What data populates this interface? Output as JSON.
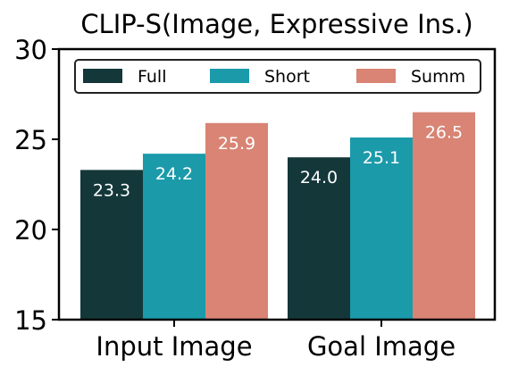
{
  "chart_data": {
    "type": "bar",
    "title": "CLIP-S(Image, Expressive Ins.)",
    "categories": [
      "Input Image",
      "Goal Image"
    ],
    "series": [
      {
        "name": "Full",
        "values": [
          23.3,
          24.0
        ],
        "color": "#14373a",
        "value_labels": [
          "23.3",
          "24.0"
        ]
      },
      {
        "name": "Short",
        "values": [
          24.2,
          25.1
        ],
        "color": "#1b9aaa",
        "value_labels": [
          "24.2",
          "25.1"
        ]
      },
      {
        "name": "Summ",
        "values": [
          25.9,
          26.5
        ],
        "color": "#d98474",
        "value_labels": [
          "25.9",
          "26.5"
        ]
      }
    ],
    "ylim": [
      15,
      30
    ],
    "yticks": [
      15,
      20,
      25,
      30
    ],
    "ytick_labels": [
      "15",
      "20",
      "25",
      "30"
    ],
    "xlabel": "",
    "ylabel": "",
    "grid": false,
    "legend_position": "top",
    "value_label_color": "#ffffff"
  }
}
